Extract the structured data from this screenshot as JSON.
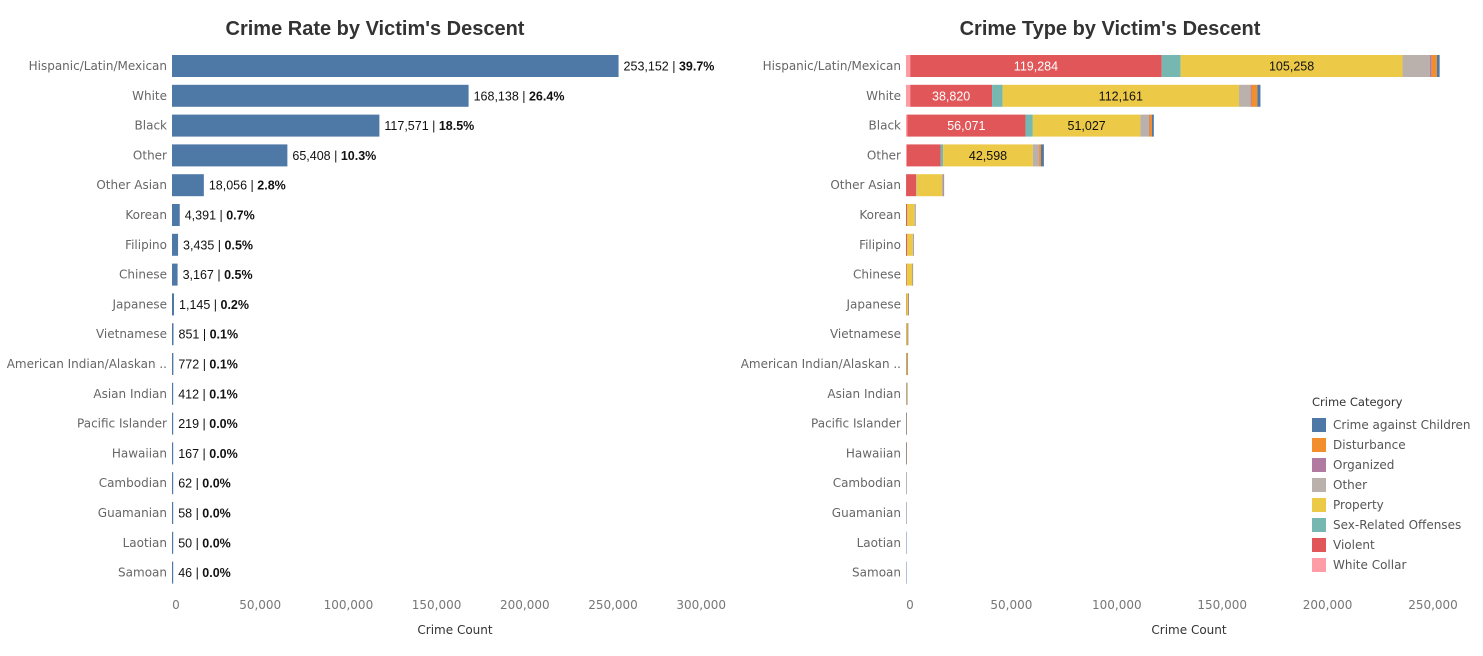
{
  "chart_data": [
    {
      "type": "bar",
      "orientation": "horizontal",
      "title": "Crime Rate by Victim's Descent",
      "xlabel": "Crime Count",
      "ylabel": "",
      "xlim": [
        0,
        300000
      ],
      "xticks": [
        "0",
        "50,000",
        "100,000",
        "150,000",
        "200,000",
        "250,000",
        "300,000"
      ],
      "color": "#4e79a7",
      "categories": [
        "Hispanic/Latin/Mexican",
        "White",
        "Black",
        "Other",
        "Other Asian",
        "Korean",
        "Filipino",
        "Chinese",
        "Japanese",
        "Vietnamese",
        "American Indian/Alaskan ..",
        "Asian Indian",
        "Pacific Islander",
        "Hawaiian",
        "Cambodian",
        "Guamanian",
        "Laotian",
        "Samoan"
      ],
      "values": [
        253152,
        168138,
        117571,
        65408,
        18056,
        4391,
        3435,
        3167,
        1145,
        851,
        772,
        412,
        219,
        167,
        62,
        58,
        50,
        46
      ],
      "count_labels": [
        "253,152",
        "168,138",
        "117,571",
        "65,408",
        "18,056",
        "4,391",
        "3,435",
        "3,167",
        "1,145",
        "851",
        "772",
        "412",
        "219",
        "167",
        "62",
        "58",
        "50",
        "46"
      ],
      "percent_labels": [
        "39.7%",
        "26.4%",
        "18.5%",
        "10.3%",
        "2.8%",
        "0.7%",
        "0.5%",
        "0.5%",
        "0.2%",
        "0.1%",
        "0.1%",
        "0.1%",
        "0.0%",
        "0.0%",
        "0.0%",
        "0.0%",
        "0.0%",
        "0.0%"
      ],
      "grid": false
    },
    {
      "type": "bar",
      "orientation": "horizontal",
      "stacked": true,
      "title": "Crime Type by Victim's Descent",
      "xlabel": "Crime Count",
      "ylabel": "",
      "xlim": [
        0,
        255000
      ],
      "xticks": [
        "0",
        "50,000",
        "100,000",
        "150,000",
        "200,000",
        "250,000"
      ],
      "legend_title": "Crime Category",
      "legend_position": "bottom-right",
      "grid": false,
      "categories": [
        "Hispanic/Latin/Mexican",
        "White",
        "Black",
        "Other",
        "Other Asian",
        "Korean",
        "Filipino",
        "Chinese",
        "Japanese",
        "Vietnamese",
        "American Indian/Alaskan ..",
        "Asian Indian",
        "Pacific Islander",
        "Hawaiian",
        "Cambodian",
        "Guamanian",
        "Laotian",
        "Samoan"
      ],
      "series": [
        {
          "name": "White Collar",
          "color": "#ff9da7",
          "values": [
            2000,
            2000,
            600,
            400,
            50,
            20,
            10,
            10,
            5,
            5,
            3,
            3,
            2,
            1,
            1,
            1,
            1,
            0
          ]
        },
        {
          "name": "Violent",
          "color": "#e15759",
          "values": [
            119284,
            38820,
            56071,
            16000,
            4800,
            500,
            500,
            300,
            150,
            100,
            200,
            40,
            40,
            20,
            10,
            10,
            5,
            10
          ]
        },
        {
          "name": "Sex-Related Offenses",
          "color": "#76b7b2",
          "values": [
            9000,
            5000,
            3500,
            1200,
            200,
            50,
            40,
            30,
            15,
            10,
            20,
            5,
            5,
            3,
            1,
            1,
            1,
            2
          ]
        },
        {
          "name": "Property",
          "color": "#edc948",
          "values": [
            105258,
            112161,
            51027,
            42598,
            12000,
            3500,
            2700,
            2700,
            900,
            650,
            450,
            340,
            130,
            120,
            45,
            40,
            40,
            30
          ]
        },
        {
          "name": "Other",
          "color": "#bab0ac",
          "values": [
            13000,
            5500,
            4000,
            2800,
            600,
            220,
            150,
            100,
            50,
            60,
            60,
            20,
            25,
            15,
            3,
            4,
            2,
            3
          ]
        },
        {
          "name": "Organized",
          "color": "#b07aa1",
          "values": [
            800,
            400,
            300,
            150,
            30,
            5,
            5,
            3,
            2,
            1,
            2,
            1,
            1,
            1,
            0,
            0,
            0,
            0
          ]
        },
        {
          "name": "Disturbance",
          "color": "#f28e2b",
          "values": [
            2500,
            2800,
            1200,
            900,
            200,
            60,
            15,
            15,
            15,
            15,
            25,
            2,
            6,
            5,
            1,
            1,
            0,
            0
          ]
        },
        {
          "name": "Crime against Children",
          "color": "#4e79a7",
          "values": [
            1310,
            1457,
            873,
            1360,
            176,
            36,
            15,
            9,
            8,
            10,
            12,
            1,
            10,
            2,
            1,
            1,
            1,
            1
          ]
        }
      ],
      "segment_labels": [
        {
          "category": "Hispanic/Latin/Mexican",
          "series": "Violent",
          "text": "119,284"
        },
        {
          "category": "Hispanic/Latin/Mexican",
          "series": "Property",
          "text": "105,258"
        },
        {
          "category": "White",
          "series": "Violent",
          "text": "38,820"
        },
        {
          "category": "White",
          "series": "Property",
          "text": "112,161"
        },
        {
          "category": "Black",
          "series": "Violent",
          "text": "56,071"
        },
        {
          "category": "Black",
          "series": "Property",
          "text": "51,027"
        },
        {
          "category": "Other",
          "series": "Property",
          "text": "42,598"
        }
      ]
    }
  ],
  "legend": {
    "title": "Crime Category",
    "items": [
      {
        "label": "Crime against Children",
        "color": "#4e79a7"
      },
      {
        "label": "Disturbance",
        "color": "#f28e2b"
      },
      {
        "label": "Organized",
        "color": "#b07aa1"
      },
      {
        "label": "Other",
        "color": "#bab0ac"
      },
      {
        "label": "Property",
        "color": "#edc948"
      },
      {
        "label": "Sex-Related Offenses",
        "color": "#76b7b2"
      },
      {
        "label": "Violent",
        "color": "#e15759"
      },
      {
        "label": "White Collar",
        "color": "#ff9da7"
      }
    ]
  }
}
